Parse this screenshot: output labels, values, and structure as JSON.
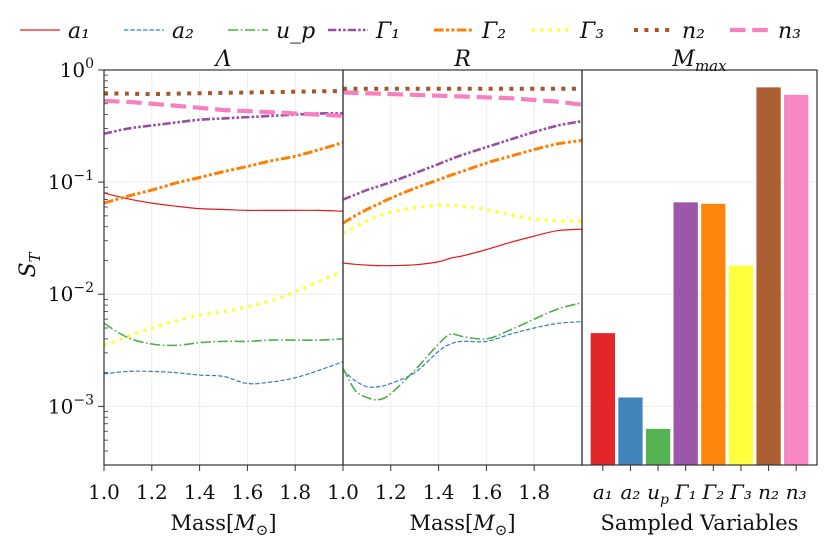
{
  "colors": {
    "a1": "#e41a1c",
    "a2": "#377eb8",
    "up": "#4daf4a",
    "G1": "#984ea3",
    "G2": "#ff7f00",
    "G3": "#ffff33",
    "n2": "#a65628",
    "n3": "#f781bf"
  },
  "legend": [
    {
      "key": "a1",
      "label": "a₁",
      "dash": "solid",
      "width": 1.2
    },
    {
      "key": "a2",
      "label": "a₂",
      "dash": "dashed",
      "width": 1.2
    },
    {
      "key": "up",
      "label": "u_p",
      "dash": "dashdot",
      "width": 1.6
    },
    {
      "key": "G1",
      "label": "Γ₁",
      "dash": "dashdotdot",
      "width": 2.6
    },
    {
      "key": "G2",
      "label": "Γ₂",
      "dash": "dashdotdot",
      "width": 3.0
    },
    {
      "key": "G3",
      "label": "Γ₃",
      "dash": "dotted",
      "width": 3.2
    },
    {
      "key": "n2",
      "label": "n₂",
      "dash": "dotted",
      "width": 4.0
    },
    {
      "key": "n3",
      "label": "n₃",
      "dash": "dashed",
      "width": 4.2
    }
  ],
  "chart_data": [
    {
      "type": "line",
      "title": "Λ",
      "xlabel": "Mass[M⊙]",
      "ylabel": "S_T",
      "yscale": "log",
      "xlim": [
        1.0,
        2.0
      ],
      "ylim": [
        0.0003,
        1.0
      ],
      "x": [
        1.0,
        1.1,
        1.2,
        1.3,
        1.4,
        1.5,
        1.6,
        1.7,
        1.8,
        1.9,
        2.0
      ],
      "series": [
        {
          "key": "a1",
          "name": "a₁",
          "values": [
            0.08,
            0.071,
            0.065,
            0.061,
            0.058,
            0.057,
            0.056,
            0.056,
            0.056,
            0.056,
            0.055
          ]
        },
        {
          "key": "a2",
          "name": "a₂",
          "values": [
            0.00195,
            0.00205,
            0.00205,
            0.002,
            0.0019,
            0.00185,
            0.0016,
            0.00165,
            0.0018,
            0.0021,
            0.0025
          ]
        },
        {
          "key": "up",
          "name": "u_p",
          "values": [
            0.0055,
            0.0041,
            0.0036,
            0.0035,
            0.0037,
            0.0038,
            0.0038,
            0.0039,
            0.0039,
            0.0039,
            0.004
          ]
        },
        {
          "key": "G1",
          "name": "Γ₁",
          "values": [
            0.27,
            0.3,
            0.32,
            0.34,
            0.36,
            0.37,
            0.38,
            0.39,
            0.4,
            0.41,
            0.41
          ]
        },
        {
          "key": "G2",
          "name": "Γ₂",
          "values": [
            0.065,
            0.075,
            0.085,
            0.098,
            0.11,
            0.124,
            0.138,
            0.155,
            0.17,
            0.195,
            0.225
          ]
        },
        {
          "key": "G3",
          "name": "Γ₃",
          "values": [
            0.0035,
            0.0042,
            0.005,
            0.0058,
            0.0065,
            0.007,
            0.0077,
            0.0088,
            0.0105,
            0.013,
            0.016
          ]
        },
        {
          "key": "n2",
          "name": "n₂",
          "values": [
            0.62,
            0.615,
            0.61,
            0.615,
            0.62,
            0.625,
            0.63,
            0.635,
            0.64,
            0.645,
            0.65
          ]
        },
        {
          "key": "n3",
          "name": "n₃",
          "values": [
            0.53,
            0.52,
            0.5,
            0.48,
            0.46,
            0.44,
            0.43,
            0.42,
            0.41,
            0.4,
            0.39
          ]
        }
      ]
    },
    {
      "type": "line",
      "title": "R",
      "xlabel": "Mass[M⊙]",
      "yscale": "log",
      "xlim": [
        1.0,
        2.0
      ],
      "ylim": [
        0.0003,
        1.0
      ],
      "x": [
        1.0,
        1.05,
        1.1,
        1.15,
        1.2,
        1.3,
        1.4,
        1.45,
        1.5,
        1.6,
        1.7,
        1.8,
        1.9,
        2.0
      ],
      "series": [
        {
          "key": "a1",
          "name": "a₁",
          "values": [
            0.019,
            0.0185,
            0.0182,
            0.018,
            0.018,
            0.0183,
            0.0195,
            0.021,
            0.022,
            0.025,
            0.029,
            0.033,
            0.037,
            0.038
          ]
        },
        {
          "key": "a2",
          "name": "a₂",
          "values": [
            0.0021,
            0.0017,
            0.0015,
            0.0015,
            0.0016,
            0.002,
            0.0031,
            0.0036,
            0.0038,
            0.0038,
            0.0044,
            0.005,
            0.0055,
            0.0057
          ]
        },
        {
          "key": "up",
          "name": "u_p",
          "values": [
            0.0022,
            0.0014,
            0.0012,
            0.00115,
            0.0013,
            0.0021,
            0.0036,
            0.0044,
            0.0042,
            0.004,
            0.0048,
            0.006,
            0.0074,
            0.0084
          ]
        },
        {
          "key": "G1",
          "name": "Γ₁",
          "values": [
            0.07,
            0.077,
            0.085,
            0.092,
            0.1,
            0.12,
            0.145,
            0.16,
            0.175,
            0.205,
            0.24,
            0.28,
            0.32,
            0.35
          ]
        },
        {
          "key": "G2",
          "name": "Γ₂",
          "values": [
            0.043,
            0.05,
            0.057,
            0.064,
            0.072,
            0.088,
            0.105,
            0.115,
            0.125,
            0.148,
            0.17,
            0.195,
            0.22,
            0.235
          ]
        },
        {
          "key": "G3",
          "name": "Γ₃",
          "values": [
            0.035,
            0.04,
            0.045,
            0.05,
            0.054,
            0.059,
            0.062,
            0.062,
            0.061,
            0.057,
            0.051,
            0.047,
            0.045,
            0.045
          ]
        },
        {
          "key": "n2",
          "name": "n₂",
          "values": [
            0.68,
            0.68,
            0.68,
            0.68,
            0.68,
            0.68,
            0.68,
            0.68,
            0.68,
            0.68,
            0.68,
            0.68,
            0.68,
            0.68
          ]
        },
        {
          "key": "n3",
          "name": "n₃",
          "values": [
            0.63,
            0.625,
            0.62,
            0.615,
            0.61,
            0.6,
            0.59,
            0.585,
            0.58,
            0.57,
            0.56,
            0.54,
            0.52,
            0.49
          ]
        }
      ]
    },
    {
      "type": "bar",
      "title": "M_max",
      "xlabel": "Sampled Variables",
      "yscale": "log",
      "ylim": [
        0.0003,
        1.0
      ],
      "categories": [
        "a₁",
        "a₂",
        "u_p",
        "Γ₁",
        "Γ₂",
        "Γ₃",
        "n₂",
        "n₃"
      ],
      "keys": [
        "a1",
        "a2",
        "up",
        "G1",
        "G2",
        "G3",
        "n2",
        "n3"
      ],
      "values": [
        0.0045,
        0.0012,
        0.00063,
        0.066,
        0.064,
        0.018,
        0.7,
        0.6
      ]
    }
  ],
  "axis": {
    "yticks": [
      {
        "value": 1,
        "label": "10",
        "exp": "0"
      },
      {
        "value": 0.1,
        "label": "10",
        "exp": "−1"
      },
      {
        "value": 0.01,
        "label": "10",
        "exp": "−2"
      },
      {
        "value": 0.001,
        "label": "10",
        "exp": "−3"
      }
    ],
    "xticks_lambda": [
      {
        "value": 1.0,
        "label": "1.0"
      },
      {
        "value": 1.2,
        "label": "1.2"
      },
      {
        "value": 1.4,
        "label": "1.4"
      },
      {
        "value": 1.6,
        "label": "1.6"
      },
      {
        "value": 1.8,
        "label": "1.8"
      }
    ],
    "xticks_r": [
      {
        "value": 1.0,
        "label": "1.0"
      },
      {
        "value": 1.2,
        "label": "1.2"
      },
      {
        "value": 1.4,
        "label": "1.4"
      },
      {
        "value": 1.6,
        "label": "1.6"
      },
      {
        "value": 1.8,
        "label": "1.8"
      }
    ]
  }
}
